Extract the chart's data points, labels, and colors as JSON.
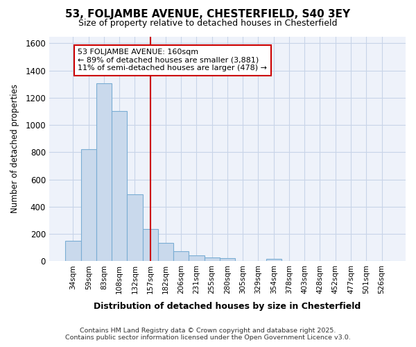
{
  "title": "53, FOLJAMBE AVENUE, CHESTERFIELD, S40 3EY",
  "subtitle": "Size of property relative to detached houses in Chesterfield",
  "xlabel": "Distribution of detached houses by size in Chesterfield",
  "ylabel": "Number of detached properties",
  "categories": [
    "34sqm",
    "59sqm",
    "83sqm",
    "108sqm",
    "132sqm",
    "157sqm",
    "182sqm",
    "206sqm",
    "231sqm",
    "255sqm",
    "280sqm",
    "305sqm",
    "329sqm",
    "354sqm",
    "378sqm",
    "403sqm",
    "428sqm",
    "452sqm",
    "477sqm",
    "501sqm",
    "526sqm"
  ],
  "values": [
    150,
    820,
    1305,
    1100,
    490,
    235,
    135,
    75,
    45,
    25,
    20,
    0,
    0,
    15,
    0,
    0,
    0,
    0,
    0,
    0,
    0
  ],
  "bar_color": "#c9d9ec",
  "bar_edge_color": "#7aadd4",
  "vline_x": 5.0,
  "vline_color": "#cc0000",
  "annotation_text": "53 FOLJAMBE AVENUE: 160sqm\n← 89% of detached houses are smaller (3,881)\n11% of semi-detached houses are larger (478) →",
  "annotation_box_color": "#ffffff",
  "annotation_box_edge": "#cc0000",
  "ylim": [
    0,
    1650
  ],
  "yticks": [
    0,
    200,
    400,
    600,
    800,
    1000,
    1200,
    1400,
    1600
  ],
  "grid_color": "#c8d4e8",
  "bg_color": "#ffffff",
  "plot_bg_color": "#eef2fa",
  "footer_line1": "Contains HM Land Registry data © Crown copyright and database right 2025.",
  "footer_line2": "Contains public sector information licensed under the Open Government Licence v3.0."
}
